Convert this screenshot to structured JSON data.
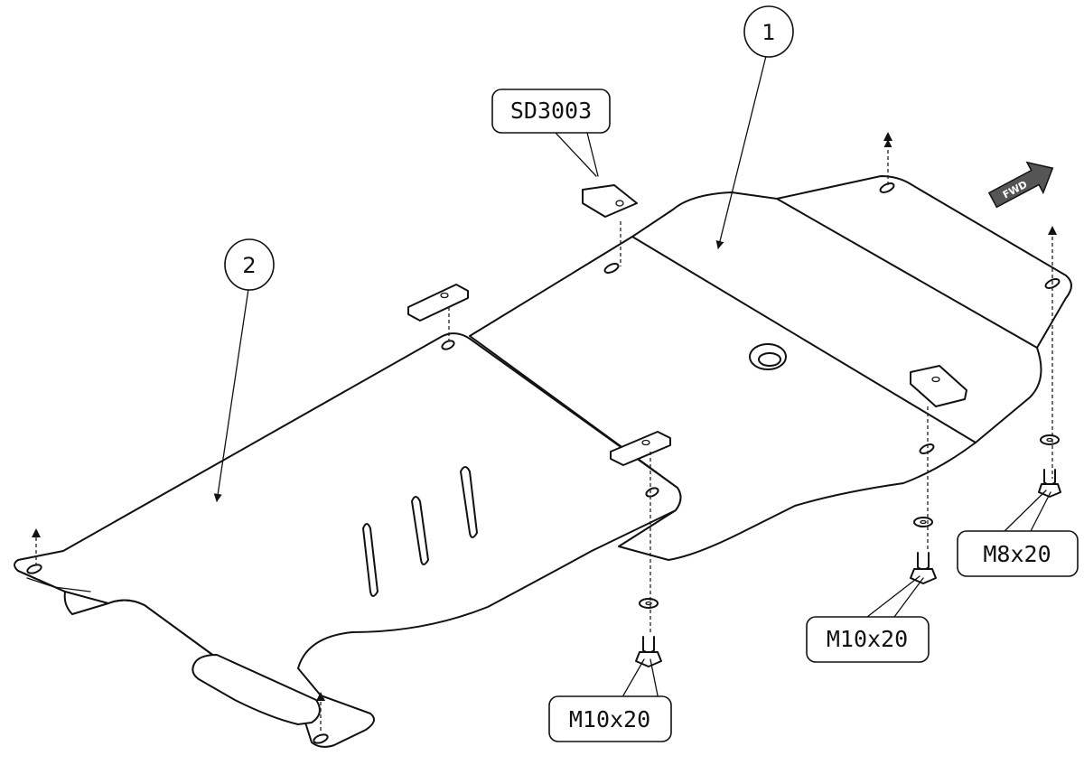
{
  "diagram": {
    "callouts": [
      {
        "id": "1",
        "label": "1"
      },
      {
        "id": "2",
        "label": "2"
      }
    ],
    "part_labels": {
      "spacer": "SD3003",
      "bolt_center": "M10x20",
      "bolt_right": "M10x20",
      "bolt_far_right": "M8x20"
    },
    "direction": {
      "label": "FWD"
    }
  }
}
